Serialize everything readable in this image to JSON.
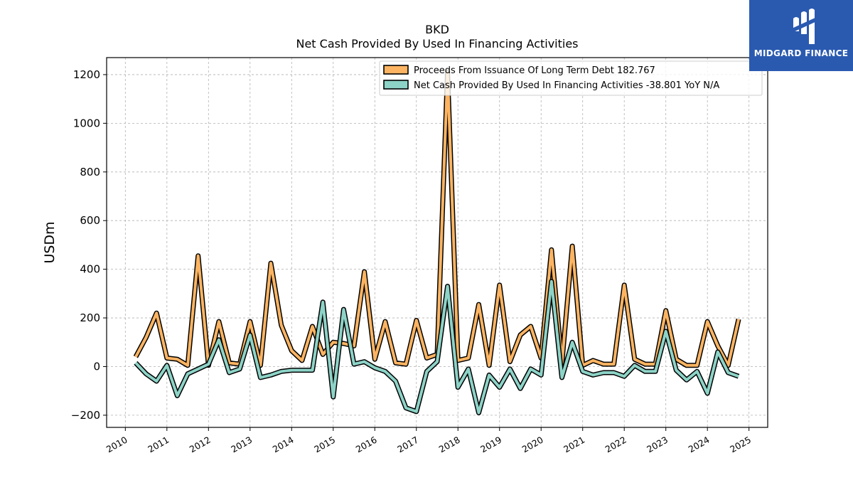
{
  "chart_data": {
    "type": "line",
    "title": "BKD",
    "subtitle": "Net Cash Provided By Used In Financing Activities",
    "xlabel": "",
    "ylabel": "USDm",
    "xlim": [
      2009.55,
      2025.45
    ],
    "ylim": [
      -250,
      1270
    ],
    "yticks": [
      -200,
      0,
      200,
      400,
      600,
      800,
      1000,
      1200
    ],
    "ytick_labels": [
      "−200",
      "0",
      "200",
      "400",
      "600",
      "800",
      "1000",
      "1200"
    ],
    "xticks": [
      2010,
      2011,
      2012,
      2013,
      2014,
      2015,
      2016,
      2017,
      2018,
      2019,
      2020,
      2021,
      2022,
      2023,
      2024,
      2025
    ],
    "xtick_labels": [
      "2010",
      "2011",
      "2012",
      "2013",
      "2014",
      "2015",
      "2016",
      "2017",
      "2018",
      "2019",
      "2020",
      "2021",
      "2022",
      "2023",
      "2024",
      "2025"
    ],
    "grid": true,
    "legend_position": "top-right",
    "x": [
      2010.25,
      2010.5,
      2010.75,
      2011.0,
      2011.25,
      2011.5,
      2011.75,
      2012.0,
      2012.25,
      2012.5,
      2012.75,
      2013.0,
      2013.25,
      2013.5,
      2013.75,
      2014.0,
      2014.25,
      2014.5,
      2014.75,
      2015.0,
      2015.25,
      2015.5,
      2015.75,
      2016.0,
      2016.25,
      2016.5,
      2016.75,
      2017.0,
      2017.25,
      2017.5,
      2017.75,
      2018.0,
      2018.25,
      2018.5,
      2018.75,
      2019.0,
      2019.25,
      2019.5,
      2019.75,
      2020.0,
      2020.25,
      2020.5,
      2020.75,
      2021.0,
      2021.25,
      2021.5,
      2021.75,
      2022.0,
      2022.25,
      2022.5,
      2022.75,
      2023.0,
      2023.25,
      2023.5,
      2023.75,
      2024.0,
      2024.25,
      2024.5,
      2024.75
    ],
    "series": [
      {
        "name": "Proceeds From Issuance Of Long Term Debt",
        "legend_value": "182.767",
        "color": "#fdb462",
        "values": [
          40,
          120,
          220,
          35,
          30,
          5,
          455,
          5,
          185,
          15,
          10,
          185,
          5,
          425,
          170,
          65,
          25,
          165,
          50,
          100,
          95,
          85,
          390,
          30,
          185,
          15,
          10,
          190,
          35,
          50,
          1210,
          25,
          35,
          255,
          5,
          335,
          20,
          130,
          165,
          35,
          480,
          15,
          495,
          5,
          25,
          10,
          10,
          335,
          30,
          10,
          10,
          230,
          30,
          5,
          5,
          185,
          85,
          5,
          195
        ]
      },
      {
        "name": "Net Cash Provided By Used In Financing Activities",
        "legend_value": "-38.801",
        "legend_suffix": "YoY N/A",
        "color": "#8dd3c7",
        "values": [
          15,
          -30,
          -60,
          5,
          -120,
          -30,
          -10,
          10,
          110,
          -25,
          -10,
          130,
          -45,
          -35,
          -20,
          -15,
          -15,
          -15,
          265,
          -125,
          235,
          10,
          20,
          -5,
          -20,
          -60,
          -170,
          -185,
          -20,
          20,
          330,
          -85,
          -10,
          -190,
          -35,
          -85,
          -10,
          -90,
          -10,
          -35,
          350,
          -45,
          100,
          -20,
          -35,
          -25,
          -25,
          -40,
          5,
          -20,
          -20,
          145,
          -15,
          -55,
          -20,
          -110,
          60,
          -25,
          -40
        ]
      }
    ],
    "legend": [
      {
        "text": "Proceeds From Issuance Of Long Term Debt  182.767",
        "color": "#fdb462"
      },
      {
        "text": "Net Cash Provided By Used In Financing Activities  -38.801 YoY N/A",
        "color": "#8dd3c7"
      }
    ]
  },
  "logo": {
    "text": "MIDGARD FINANCE",
    "background": "#2a5ab0"
  }
}
